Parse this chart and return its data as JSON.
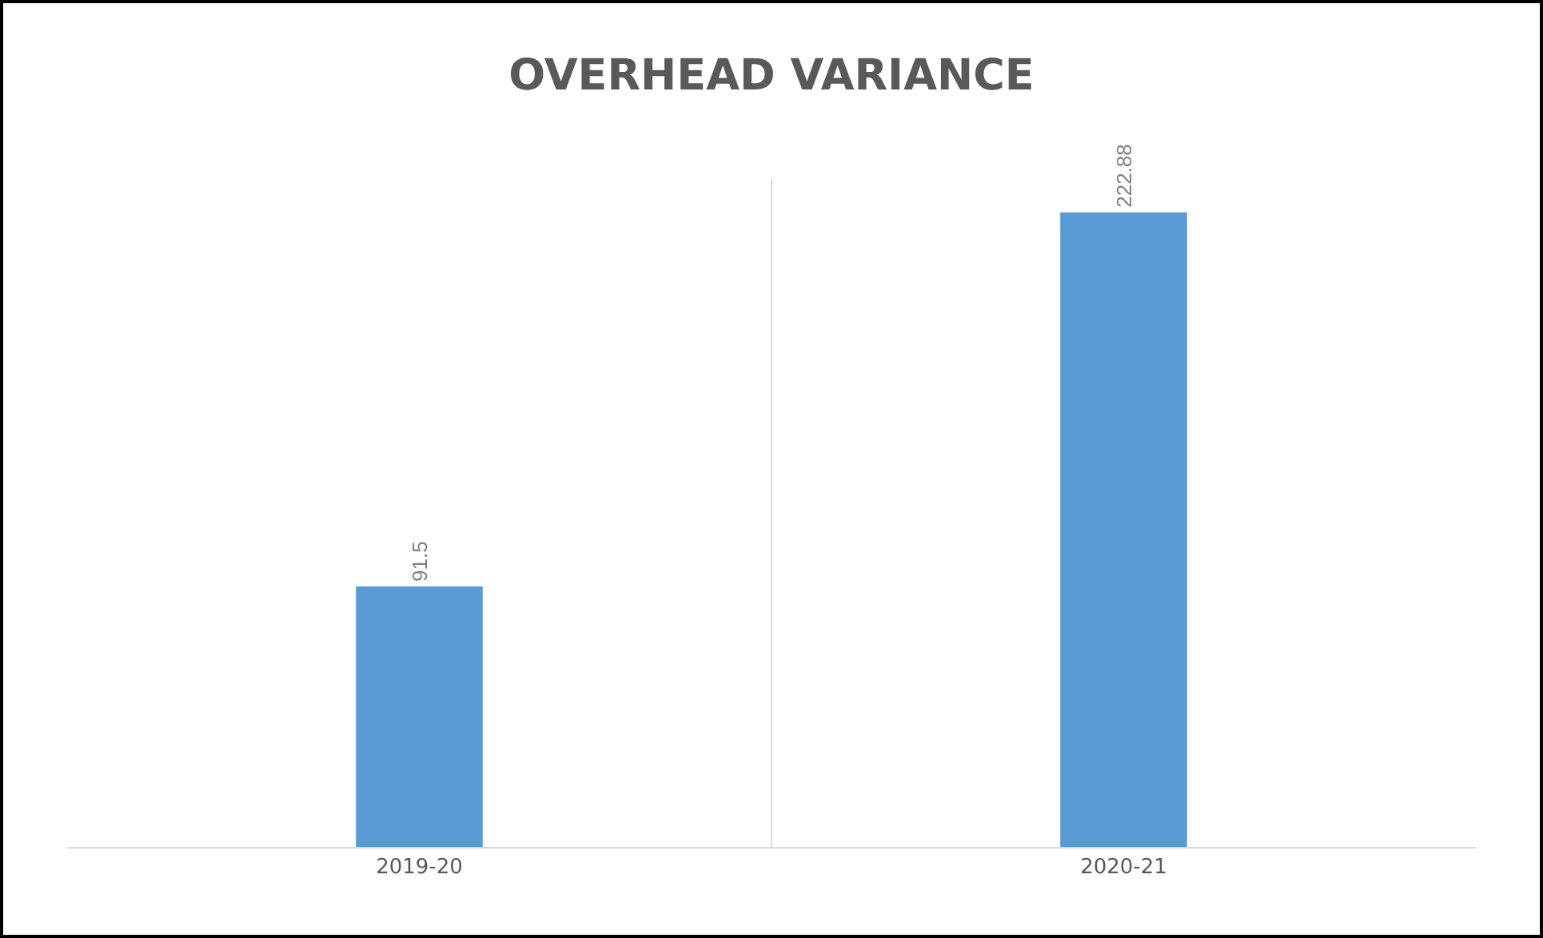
{
  "chart_data": {
    "type": "bar",
    "title": "OVERHEAD VARIANCE",
    "categories": [
      "2019-20",
      "2020-21"
    ],
    "values": [
      91.5,
      222.88
    ],
    "color": "#5b9bd5",
    "data_labels": true,
    "grid": "x",
    "legend": false,
    "tick_labels": "x"
  }
}
